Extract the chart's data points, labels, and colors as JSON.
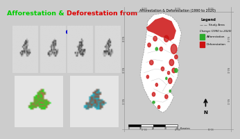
{
  "title_line1_parts": [
    {
      "text": "Afforestation & ",
      "color": "#00bb00"
    },
    {
      "text": "Deforestation",
      "color": "#dd0000"
    },
    {
      "text": " from",
      "color": "#00bb00"
    }
  ],
  "title_line2": {
    "text": "1990 to 2020",
    "color": "#0000cc"
  },
  "right_title": "Afforestation & Deforestation (1990 to 2020)",
  "legend_title": "Legend",
  "bg_left": "#d8d8d8",
  "bg_right": "#f0f0f0",
  "map_white": "#ffffff",
  "defor_color": "#cc1111",
  "affor_color": "#2aaa2a",
  "line_color": "#888888"
}
